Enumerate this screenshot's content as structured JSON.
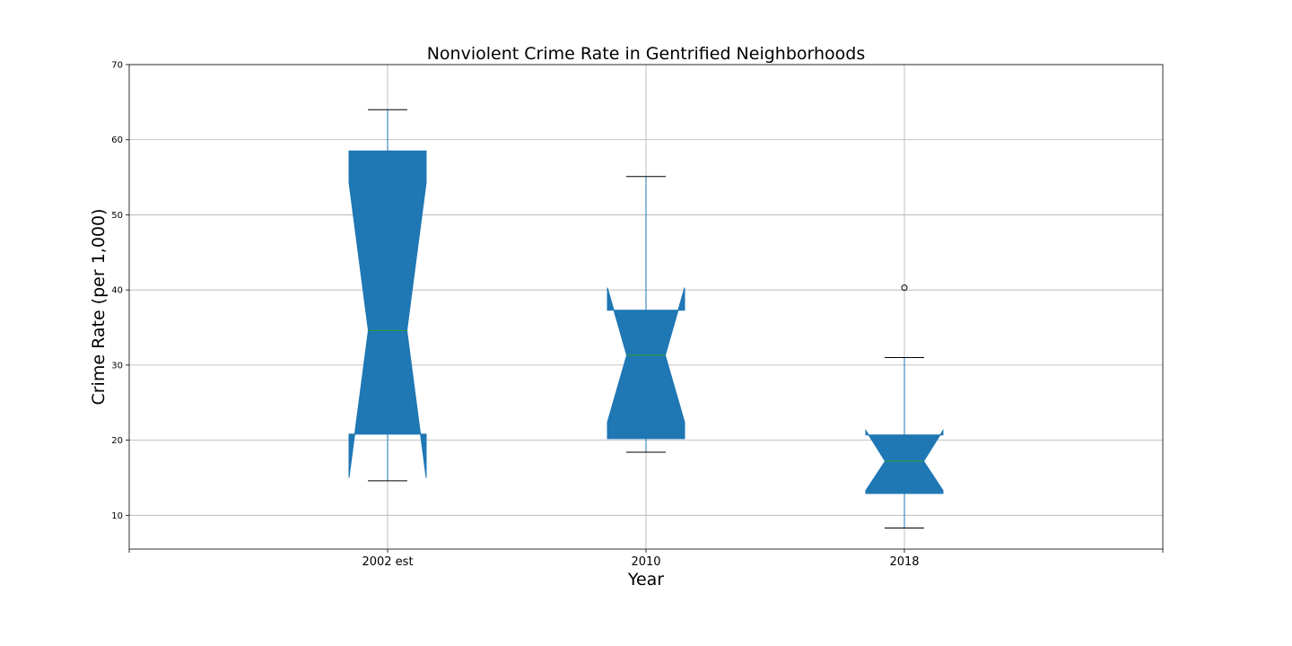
{
  "chart_data": {
    "type": "boxplot",
    "title": "Nonviolent Crime Rate in Gentrified Neighborhoods",
    "xlabel": "Year",
    "ylabel": "Crime Rate (per 1,000)",
    "categories": [
      "2002 est",
      "2010",
      "2018"
    ],
    "ylim": [
      5.5,
      70
    ],
    "yticks": [
      10,
      20,
      30,
      40,
      50,
      60,
      70
    ],
    "grid": true,
    "notched": true,
    "box_color": "#1f77b4",
    "median_color": "#2ca02c",
    "boxes": [
      {
        "category": "2002 est",
        "whisker_low": 14.6,
        "q1": 20.8,
        "median": 34.6,
        "q3": 58.5,
        "whisker_high": 64.0,
        "notch_low": 15.0,
        "notch_high": 54.3,
        "outliers": []
      },
      {
        "category": "2010",
        "whisker_low": 18.4,
        "q1": 20.2,
        "median": 31.3,
        "q3": 37.3,
        "whisker_high": 55.1,
        "notch_low": 22.4,
        "notch_high": 40.3,
        "outliers": []
      },
      {
        "category": "2018",
        "whisker_low": 8.3,
        "q1": 12.9,
        "median": 17.2,
        "q3": 20.7,
        "whisker_high": 31.0,
        "notch_low": 13.3,
        "notch_high": 21.3,
        "outliers": [
          40.3
        ]
      }
    ]
  }
}
